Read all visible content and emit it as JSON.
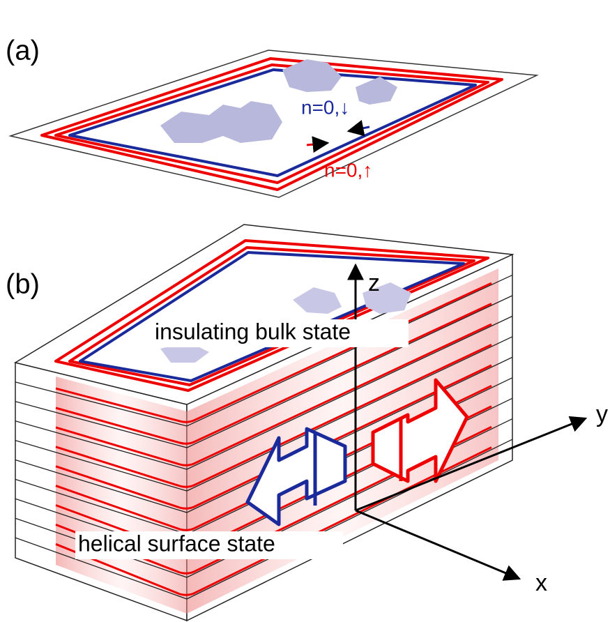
{
  "panel_a": {
    "label": "(a)",
    "down_state": "n=0,↓",
    "up_state": "n=0,↑"
  },
  "panel_b": {
    "label": "(b)",
    "axis_z": "z",
    "axis_y": "y",
    "axis_x": "x",
    "bulk_label": "insulating bulk state",
    "surface_label": "helical surface state"
  }
}
